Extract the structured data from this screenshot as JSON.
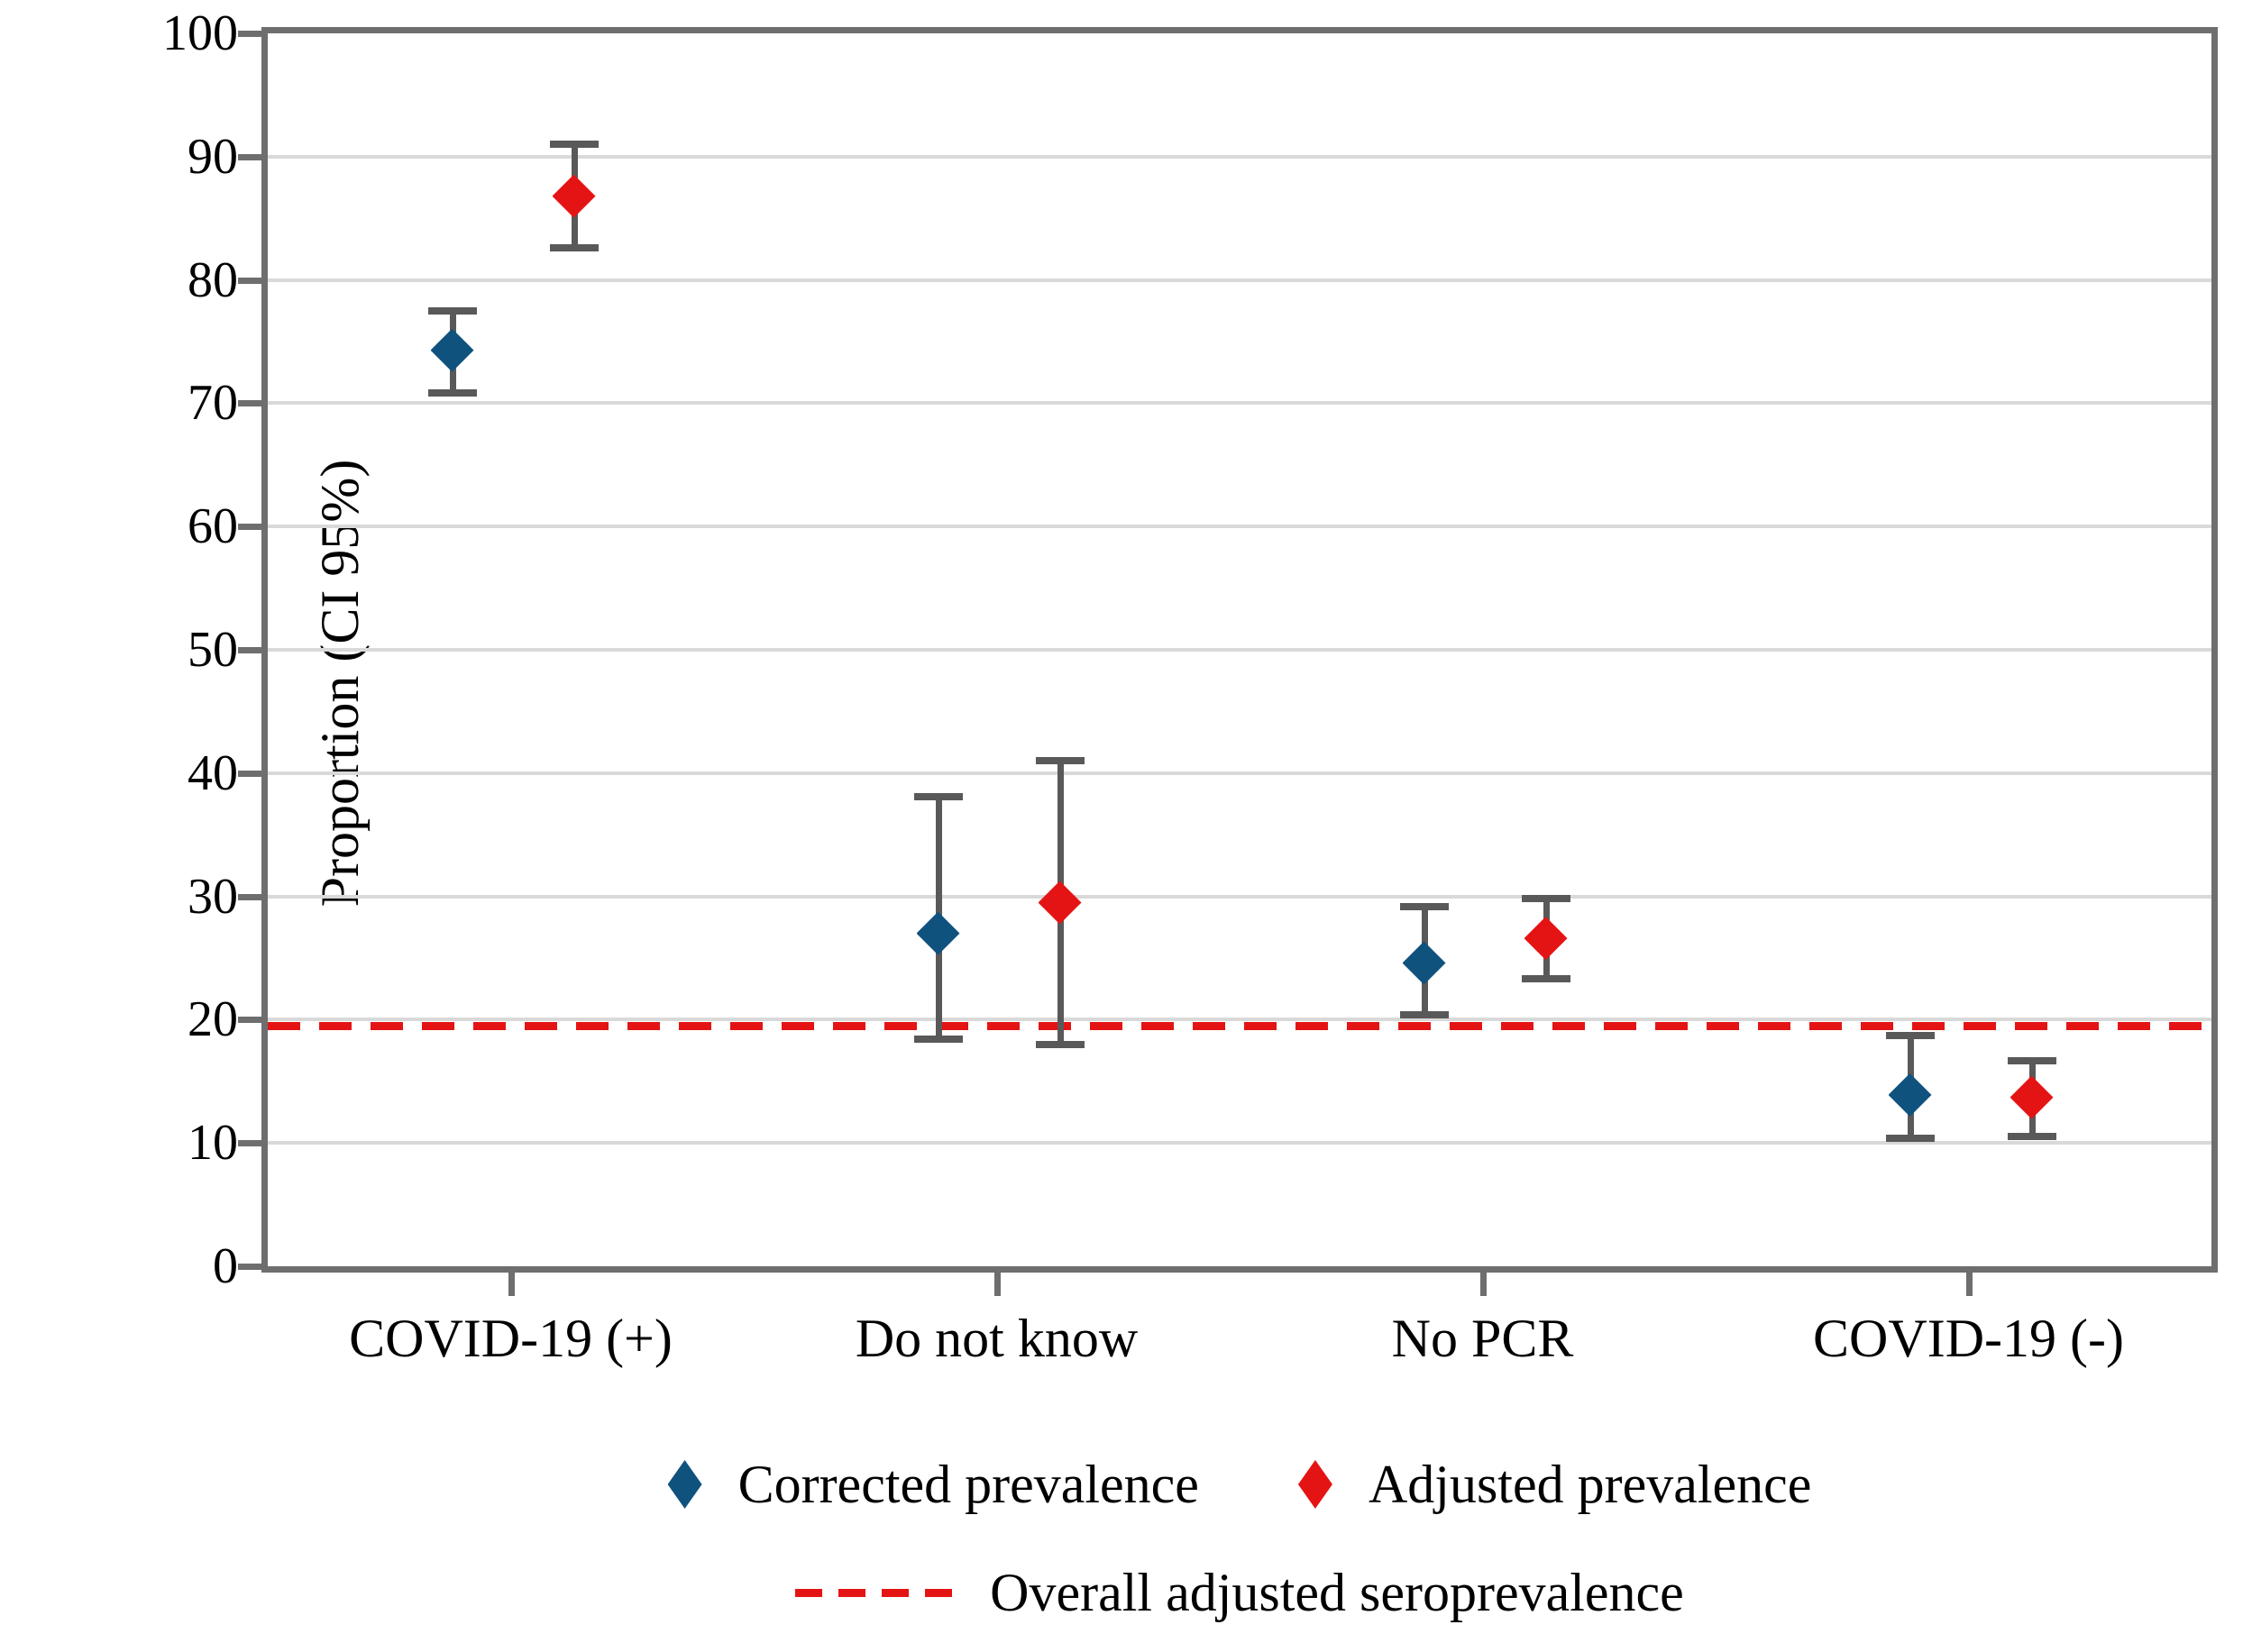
{
  "figure": {
    "background_color": "#ffffff",
    "axis_color": "#6e6e6e",
    "gridline_color": "#d9d9d9",
    "error_bar_color": "#595959",
    "y_tick_labels": [
      "0",
      "10",
      "20",
      "30",
      "40",
      "50",
      "60",
      "70",
      "80",
      "90",
      "100"
    ]
  },
  "chart_data": {
    "type": "scatter",
    "title": "",
    "xlabel": "",
    "ylabel": "Proportion (CI 95%)",
    "ylim": [
      0,
      100
    ],
    "y_step": 10,
    "grid": true,
    "legend_position": "bottom",
    "categories": [
      "COVID-19 (+)",
      "Do not know",
      "No PCR",
      "COVID-19 (-)"
    ],
    "series": [
      {
        "name": "Corrected prevalence",
        "color": "#10527e",
        "marker": "diamond",
        "values": [
          74.3,
          27.0,
          24.6,
          13.9
        ],
        "ci_low": [
          70.8,
          18.4,
          20.4,
          10.4
        ],
        "ci_high": [
          77.5,
          38.1,
          29.2,
          18.7
        ]
      },
      {
        "name": "Adjusted prevalence",
        "color": "#e51414",
        "marker": "diamond",
        "values": [
          86.8,
          29.5,
          26.6,
          13.7
        ],
        "ci_low": [
          82.6,
          18.0,
          23.3,
          10.5
        ],
        "ci_high": [
          91.0,
          41.0,
          29.8,
          16.7
        ]
      }
    ],
    "reference_line": {
      "label": "Overall adjusted seroprevalence",
      "value": 19.5,
      "color": "#e51414",
      "style": "dashed"
    }
  }
}
